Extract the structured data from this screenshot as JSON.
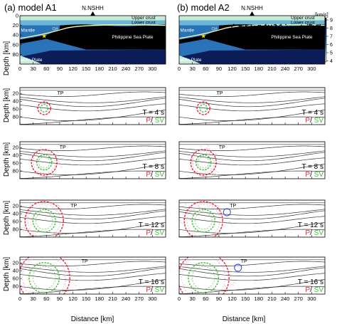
{
  "panels": [
    {
      "label": "(a) model A1"
    },
    {
      "label": "(b) model A2"
    }
  ],
  "station": "N.NSHH",
  "velocity_model": {
    "layers": [
      "Upper crust",
      "Lower crust",
      "Mantle",
      "Philippine Sea Plate",
      "Pacific Plate"
    ],
    "other_label": "OA",
    "colorbar": {
      "unit": "[km/s]",
      "ticks": [
        "9",
        "8",
        "7",
        "6",
        "5",
        "4"
      ],
      "colors": [
        "#000000",
        "#0c1d5a",
        "#14408c",
        "#2a73b8",
        "#6bb8d6",
        "#c8ead8",
        "#f8f8b0"
      ]
    }
  },
  "axes": {
    "ylabel": "Depth [km]",
    "xlabel": "Distance [km]",
    "xticks": [
      "0",
      "30",
      "60",
      "90",
      "120",
      "150",
      "180",
      "210",
      "240",
      "270",
      "300"
    ],
    "yticks_model": [
      "0",
      "20",
      "40",
      "60",
      "80"
    ],
    "yticks_snap": [
      "20",
      "40",
      "60",
      "80"
    ]
  },
  "snapshots": [
    {
      "time": "T = 4 s"
    },
    {
      "time": "T = 8 s"
    },
    {
      "time": "T = 12 s"
    },
    {
      "time": "T = 16 s"
    }
  ],
  "phase_legend": {
    "p": "P",
    "sep": "/ ",
    "s": "SV",
    "p_color": "#e8253a",
    "s_color": "#3bbf3b"
  },
  "tp_label": "TP"
}
